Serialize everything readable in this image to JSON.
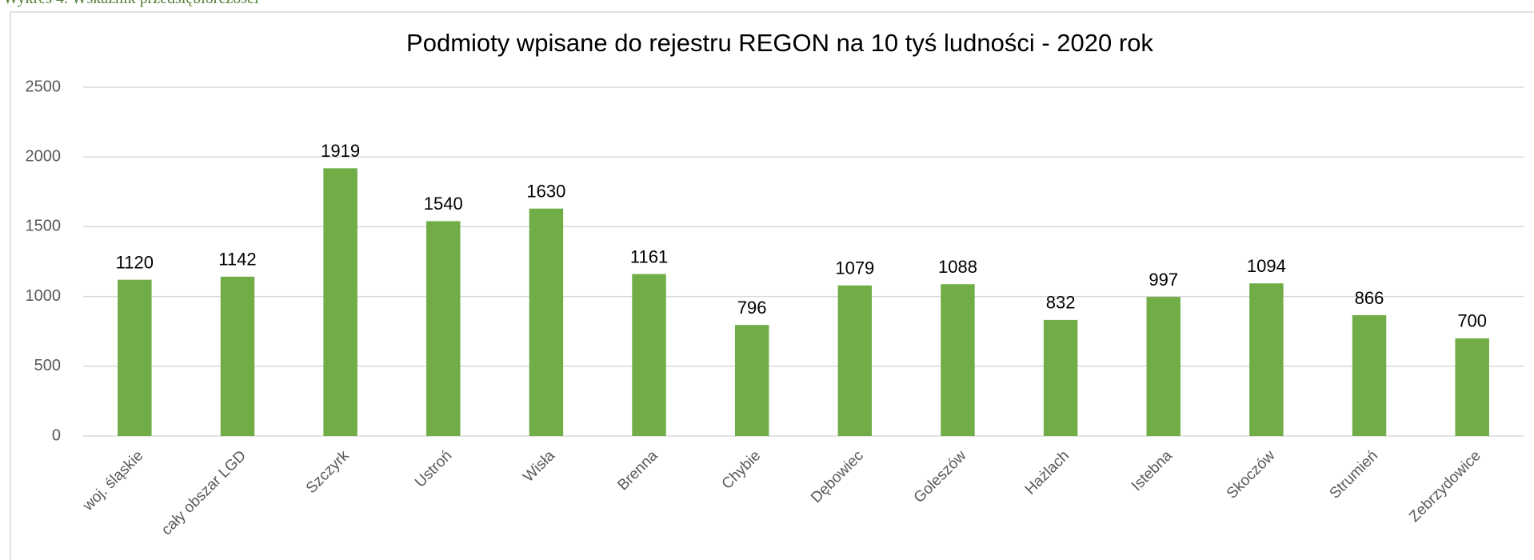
{
  "caption": "Wykres 4. Wskaźnik przedsiębiorczości",
  "chart_data": {
    "type": "bar",
    "title": "Podmioty wpisane do rejestru REGON na 10 tyś ludności - 2020 rok",
    "categories": [
      "woj. śląskie",
      "cały obszar LGD",
      "Szczyrk",
      "Ustroń",
      "Wisła",
      "Brenna",
      "Chybie",
      "Dębowiec",
      "Goleszów",
      "Hażlach",
      "Istebna",
      "Skoczów",
      "Strumień",
      "Zebrzydowice"
    ],
    "values": [
      1120,
      1142,
      1919,
      1540,
      1630,
      1161,
      796,
      1079,
      1088,
      832,
      997,
      1094,
      866,
      700
    ],
    "color": "#70ad47",
    "ylim": [
      0,
      2500
    ],
    "yticks": [
      0,
      500,
      1000,
      1500,
      2000,
      2500
    ],
    "grid": true
  }
}
